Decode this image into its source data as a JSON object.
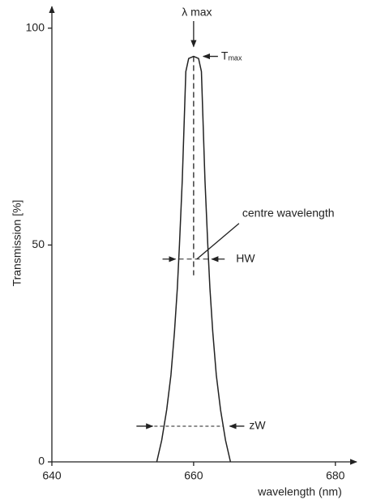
{
  "chart_data": {
    "type": "line",
    "x_label": "wavelength (nm)",
    "y_label": "Transmission  [%]",
    "x": [
      654.8,
      655.5,
      656.2,
      656.8,
      657.3,
      657.7,
      658.0,
      658.4,
      658.7,
      658.9,
      659.3,
      660.0,
      660.7,
      661.1,
      661.3,
      661.6,
      662.0,
      662.3,
      662.7,
      663.2,
      663.8,
      664.5,
      665.2
    ],
    "values": [
      0,
      5,
      12,
      20,
      30,
      40,
      50,
      65,
      80,
      90,
      93,
      93.5,
      93,
      90,
      80,
      65,
      50,
      40,
      30,
      20,
      12,
      5,
      0
    ],
    "color": "#222222",
    "xlim": [
      640,
      683
    ],
    "ylim": [
      0,
      105
    ],
    "xticks": [
      640,
      660,
      680
    ],
    "yticks": [
      0,
      50,
      100
    ],
    "annotations": {
      "lambda_max": "λ  max",
      "t_max": "T",
      "t_max_sub": "max",
      "centre": "centre wavelength",
      "hw": "HW",
      "zw": "zW"
    }
  }
}
